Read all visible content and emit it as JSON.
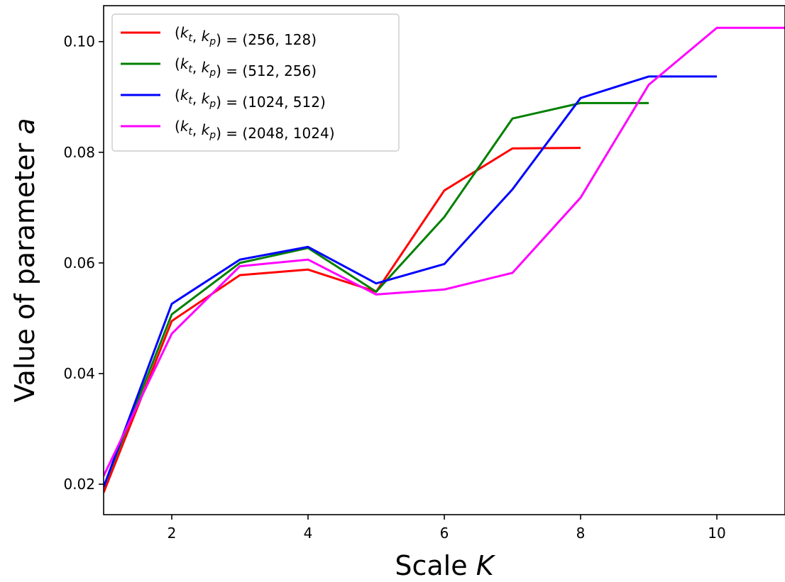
{
  "chart_data": {
    "type": "line",
    "title": "",
    "xlabel": "Scale K",
    "xlabel_parts": {
      "text": "Scale ",
      "italic": "K"
    },
    "ylabel": "Value of parameter a",
    "ylabel_parts": {
      "text": "Value of parameter ",
      "italic": "a"
    },
    "xlim": [
      1,
      11
    ],
    "ylim": [
      0.0145,
      0.1065
    ],
    "x_ticks": [
      2,
      4,
      6,
      8,
      10
    ],
    "x_tick_labels": [
      "2",
      "4",
      "6",
      "8",
      "10"
    ],
    "y_ticks": [
      0.02,
      0.04,
      0.06,
      0.08,
      0.1
    ],
    "y_tick_labels": [
      "0.02",
      "0.04",
      "0.06",
      "0.08",
      "0.10"
    ],
    "grid": false,
    "legend_position": "upper-left",
    "series": [
      {
        "name": "(k_t, k_p) = (256, 128)",
        "value_text": " = (256, 128)",
        "color": "#ff0000",
        "x": [
          1,
          2,
          3,
          4,
          5,
          6,
          7,
          8
        ],
        "y": [
          0.0185,
          0.0495,
          0.0578,
          0.0588,
          0.0548,
          0.0731,
          0.0807,
          0.0808
        ]
      },
      {
        "name": "(k_t, k_p) = (512, 256)",
        "value_text": " = (512, 256)",
        "color": "#008000",
        "x": [
          1,
          2,
          3,
          4,
          5,
          6,
          7,
          8,
          9
        ],
        "y": [
          0.0195,
          0.0507,
          0.06,
          0.0627,
          0.0548,
          0.0683,
          0.0861,
          0.0889,
          0.0889
        ]
      },
      {
        "name": "(k_t, k_p) = (1024, 512)",
        "value_text": " = (1024, 512)",
        "color": "#0000ff",
        "x": [
          1,
          2,
          3,
          4,
          5,
          6,
          7,
          8,
          9,
          10
        ],
        "y": [
          0.0195,
          0.0526,
          0.0606,
          0.0629,
          0.0563,
          0.0598,
          0.0733,
          0.0898,
          0.0937,
          0.0937
        ]
      },
      {
        "name": "(k_t, k_p) = (2048, 1024)",
        "value_text": " = (2048, 1024)",
        "color": "#ff00ff",
        "x": [
          1,
          2,
          3,
          4,
          5,
          6,
          7,
          8,
          9,
          10,
          11
        ],
        "y": [
          0.0215,
          0.0472,
          0.0594,
          0.0606,
          0.0543,
          0.0552,
          0.0582,
          0.0718,
          0.0922,
          0.1025,
          0.1025
        ]
      }
    ]
  }
}
